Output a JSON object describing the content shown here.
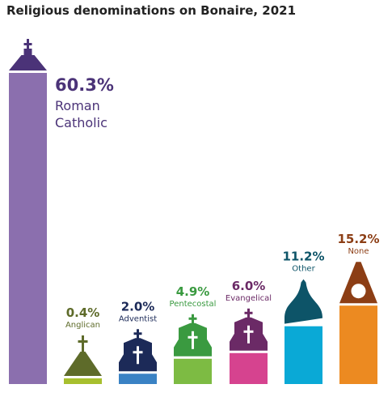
{
  "chart_data": {
    "type": "bar",
    "title": "Religious denominations on Bonaire, 2021",
    "unit": "%",
    "xlabel": "",
    "ylabel": "",
    "ylim": [
      0,
      60.3
    ],
    "grid": false,
    "legend": "none",
    "categories": [
      "Roman Catholic",
      "Anglican",
      "Adventist",
      "Pentecostal",
      "Evangelical",
      "Other",
      "None"
    ],
    "values": [
      60.3,
      0.4,
      2.0,
      4.9,
      6.0,
      11.2,
      15.2
    ],
    "value_labels": [
      "60.3%",
      "0.4%",
      "2.0%",
      "4.9%",
      "6.0%",
      "11.2%",
      "15.2%"
    ],
    "category_label_lines": [
      [
        "Roman",
        "Catholic"
      ],
      [
        "Anglican"
      ],
      [
        "Adventist"
      ],
      [
        "Pentecostal"
      ],
      [
        "Evangelical"
      ],
      [
        "Other"
      ],
      [
        "None"
      ]
    ],
    "colors": [
      "#8b6fae",
      "#a7bf2e",
      "#3a82c4",
      "#7dbb43",
      "#d6438f",
      "#0aa9d6",
      "#ec8a21"
    ],
    "roof_colors": [
      "#4b3378",
      "#5e6b2a",
      "#1c2a58",
      "#3a9a40",
      "#6b2a66",
      "#0d5468",
      "#8c3e15"
    ],
    "label_colors": [
      "#4b3378",
      "#5e6b2a",
      "#1c2a58",
      "#3a9a40",
      "#6b2a66",
      "#0d5468",
      "#8c3e15"
    ],
    "icons": [
      "church-cross-icon",
      "steeple-cross-icon",
      "chapel-cross-icon",
      "chapel-cross-icon",
      "chapel-cross-icon",
      "dome-icon",
      "round-window-icon"
    ]
  }
}
